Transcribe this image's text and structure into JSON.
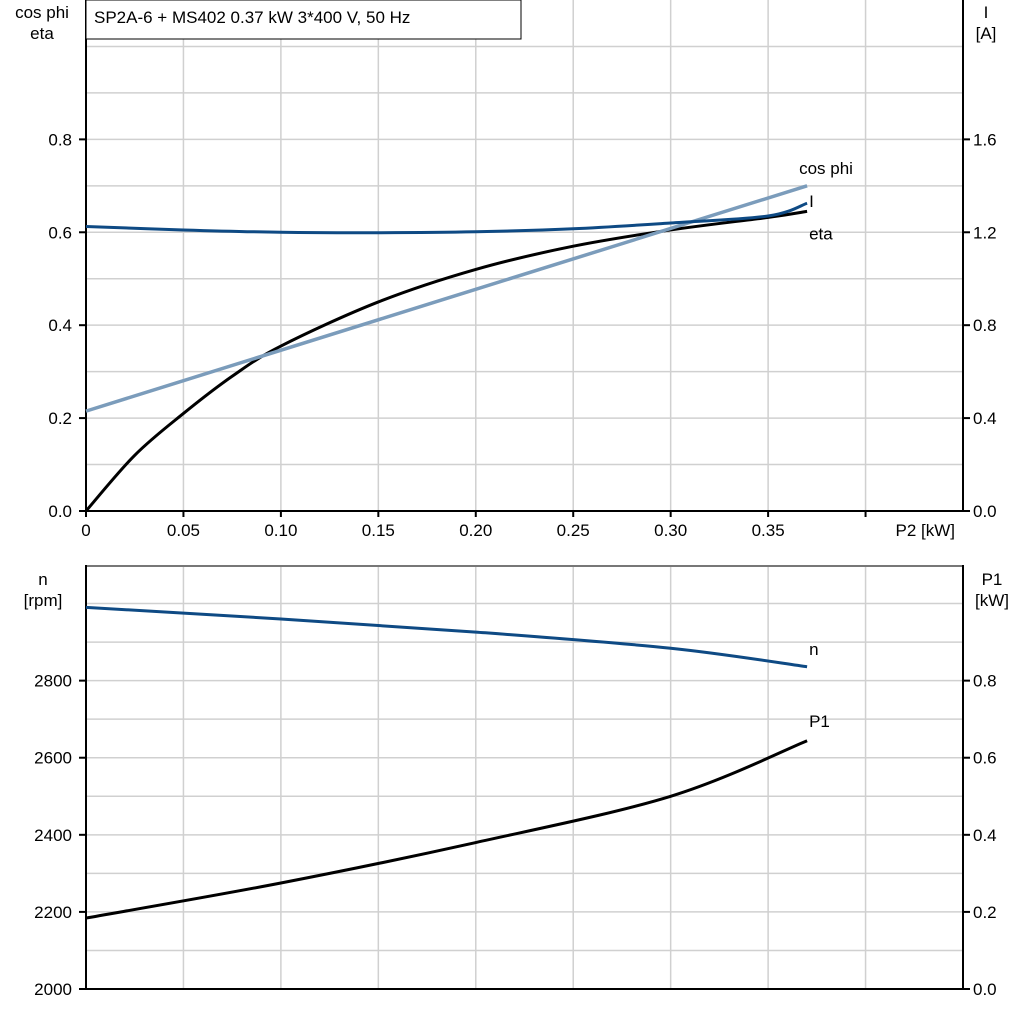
{
  "colors": {
    "eta": "#000000",
    "cos_phi": "#7b9cbb",
    "I": "#0e4a84",
    "n": "#0e4a84",
    "P1": "#000000",
    "grid": "#d0d0d0"
  },
  "chart_data": [
    {
      "type": "line",
      "title": "SP2A-6 + MS402   0.37 kW   3*400 V, 50 Hz",
      "xlabel": "P2 [kW]",
      "ylabel_left": [
        "cos phi",
        "eta"
      ],
      "ylabel_right": [
        "I",
        "[A]"
      ],
      "xlim": [
        0,
        0.45
      ],
      "ylim_left": [
        0,
        1.1
      ],
      "ylim_right": [
        0,
        2.2
      ],
      "grid": true,
      "x_ticks": [
        "0",
        "0.05",
        "0.10",
        "0.15",
        "0.20",
        "0.25",
        "0.30",
        "0.35"
      ],
      "y_ticks_left": [
        "0.0",
        "0.2",
        "0.4",
        "0.6",
        "0.8"
      ],
      "y_ticks_right": [
        "0.0",
        "0.4",
        "0.8",
        "1.2",
        "1.6"
      ],
      "series": [
        {
          "name": "eta",
          "axis": "left",
          "x": [
            0,
            0.025,
            0.05,
            0.075,
            0.1,
            0.15,
            0.2,
            0.25,
            0.3,
            0.35,
            0.37
          ],
          "y": [
            0,
            0.12,
            0.21,
            0.29,
            0.355,
            0.45,
            0.52,
            0.57,
            0.605,
            0.632,
            0.645
          ]
        },
        {
          "name": "cos phi",
          "axis": "left",
          "x": [
            0,
            0.37
          ],
          "y": [
            0.215,
            0.7
          ]
        },
        {
          "name": "I",
          "axis": "right",
          "x": [
            0,
            0.05,
            0.1,
            0.15,
            0.2,
            0.25,
            0.3,
            0.35,
            0.37
          ],
          "y": [
            1.225,
            1.21,
            1.2,
            1.198,
            1.202,
            1.215,
            1.24,
            1.27,
            1.325
          ]
        }
      ]
    },
    {
      "type": "line",
      "ylabel_left": [
        "n",
        "[rpm]"
      ],
      "ylabel_right": [
        "P1",
        "[kW]"
      ],
      "xlim": [
        0,
        0.45
      ],
      "ylim_left": [
        2000,
        3100
      ],
      "ylim_right": [
        0,
        1.1
      ],
      "grid": true,
      "y_ticks_left": [
        "2000",
        "2200",
        "2400",
        "2600",
        "2800"
      ],
      "y_ticks_right": [
        "0.0",
        "0.2",
        "0.4",
        "0.6",
        "0.8"
      ],
      "series": [
        {
          "name": "n",
          "axis": "left",
          "x": [
            0,
            0.1,
            0.2,
            0.3,
            0.37
          ],
          "y": [
            2990,
            2960,
            2926,
            2884,
            2836
          ]
        },
        {
          "name": "P1",
          "axis": "right",
          "x": [
            0,
            0.1,
            0.2,
            0.3,
            0.37
          ],
          "y": [
            0.184,
            0.275,
            0.38,
            0.5,
            0.644
          ]
        }
      ]
    }
  ]
}
